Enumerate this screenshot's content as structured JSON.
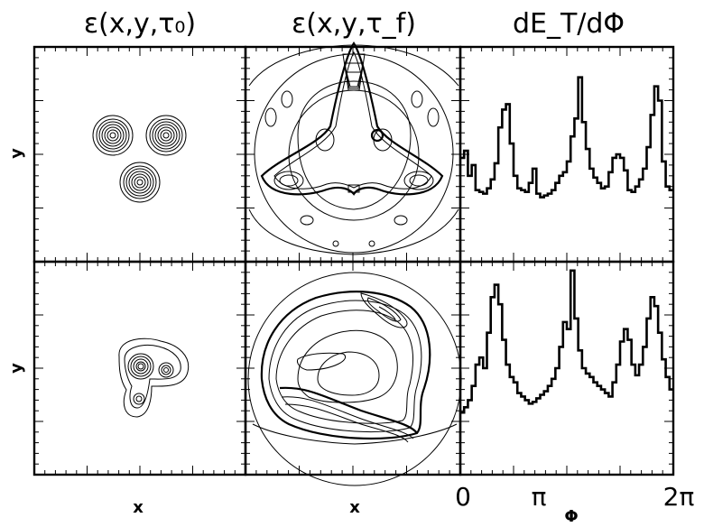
{
  "titles": {
    "col1": "ε(x,y,τ₀)",
    "col2": "ε(x,y,τ_f)",
    "col3": "dE_T/dΦ"
  },
  "axis_labels": {
    "y_top": "y",
    "y_bottom": "y",
    "x_col1": "x",
    "x_col2": "x",
    "x_col3": "Φ"
  },
  "x_ticks": [
    "0",
    "π",
    "2π"
  ],
  "chart_data": [
    {
      "type": "histogram",
      "panel": "top-right",
      "xlabel": "Φ",
      "xlim": [
        0,
        6.2832
      ],
      "values": [
        0.58,
        0.62,
        0.48,
        0.54,
        0.4,
        0.39,
        0.38,
        0.41,
        0.46,
        0.55,
        0.75,
        0.85,
        0.88,
        0.66,
        0.48,
        0.41,
        0.4,
        0.39,
        0.44,
        0.52,
        0.38,
        0.36,
        0.37,
        0.38,
        0.4,
        0.44,
        0.48,
        0.5,
        0.56,
        0.7,
        0.8,
        1.03,
        0.78,
        0.63,
        0.52,
        0.47,
        0.44,
        0.41,
        0.42,
        0.5,
        0.58,
        0.6,
        0.58,
        0.51,
        0.4,
        0.39,
        0.42,
        0.46,
        0.52,
        0.64,
        0.82,
        0.98,
        0.9,
        0.56,
        0.42,
        0.4
      ]
    },
    {
      "type": "histogram",
      "panel": "bottom-right",
      "xlabel": "Φ",
      "xlim": [
        0,
        6.2832
      ],
      "values": [
        0.35,
        0.38,
        0.42,
        0.5,
        0.62,
        0.66,
        0.6,
        0.8,
        1.0,
        1.07,
        0.96,
        0.76,
        0.62,
        0.55,
        0.52,
        0.46,
        0.44,
        0.42,
        0.4,
        0.41,
        0.43,
        0.45,
        0.47,
        0.5,
        0.54,
        0.6,
        0.72,
        0.86,
        0.82,
        1.15,
        0.88,
        0.7,
        0.6,
        0.57,
        0.55,
        0.52,
        0.5,
        0.48,
        0.46,
        0.44,
        0.52,
        0.62,
        0.75,
        0.82,
        0.76,
        0.62,
        0.56,
        0.62,
        0.72,
        0.88,
        1.0,
        0.95,
        0.8,
        0.65,
        0.55,
        0.48
      ]
    }
  ]
}
